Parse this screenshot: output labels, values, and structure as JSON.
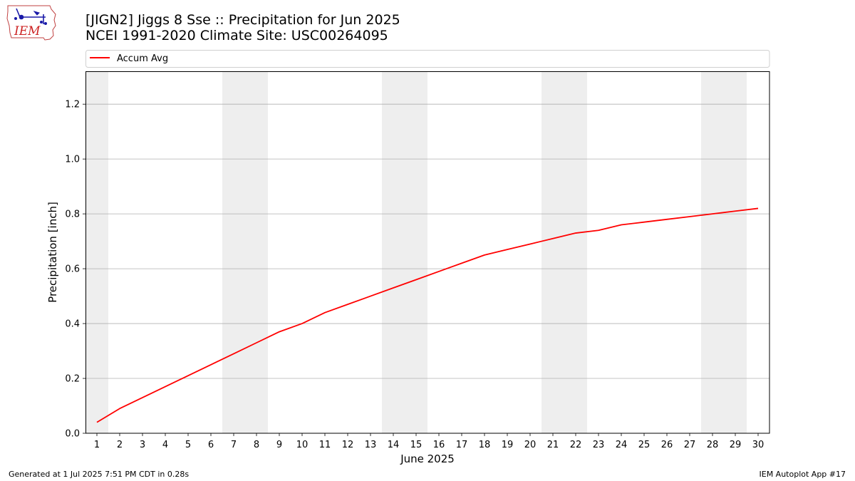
{
  "header": {
    "title_line1": "[JIGN2] Jiggs 8 Sse :: Precipitation for Jun 2025",
    "title_line2": "NCEI 1991-2020 Climate Site: USC00264095",
    "logo_text": "IEM"
  },
  "footer": {
    "left": "Generated at 1 Jul 2025 7:51 PM CDT in 0.28s",
    "right": "IEM Autoplot App #17"
  },
  "colors": {
    "series": "#ff0000",
    "weekend_shade": "#eeeeee",
    "grid": "#b0b0b0",
    "logo_text": "#cc2222",
    "logo_icon": "#1a1aa8"
  },
  "chart_data": {
    "type": "line",
    "xlabel": "June 2025",
    "ylabel": "Precipitation [inch]",
    "xlim": [
      0.5,
      30.5
    ],
    "ylim": [
      0,
      1.32
    ],
    "yticks": [
      0.0,
      0.2,
      0.4,
      0.6,
      0.8,
      1.0,
      1.2
    ],
    "ytick_labels": [
      "0.0",
      "0.2",
      "0.4",
      "0.6",
      "0.8",
      "1.0",
      "1.2"
    ],
    "xticks": [
      1,
      2,
      3,
      4,
      5,
      6,
      7,
      8,
      9,
      10,
      11,
      12,
      13,
      14,
      15,
      16,
      17,
      18,
      19,
      20,
      21,
      22,
      23,
      24,
      25,
      26,
      27,
      28,
      29,
      30
    ],
    "xtick_labels": [
      "1",
      "2",
      "3",
      "4",
      "5",
      "6",
      "7",
      "8",
      "9",
      "10",
      "11",
      "12",
      "13",
      "14",
      "15",
      "16",
      "17",
      "18",
      "19",
      "20",
      "21",
      "22",
      "23",
      "24",
      "25",
      "26",
      "27",
      "28",
      "29",
      "30"
    ],
    "grid": "horizontal",
    "legend": "top",
    "weekend_bands": [
      [
        0.5,
        1.5
      ],
      [
        6.5,
        8.5
      ],
      [
        13.5,
        15.5
      ],
      [
        20.5,
        22.5
      ],
      [
        27.5,
        29.5
      ]
    ],
    "series": [
      {
        "name": "Accum Avg",
        "x": [
          1,
          2,
          3,
          4,
          5,
          6,
          7,
          8,
          9,
          10,
          11,
          12,
          13,
          14,
          15,
          16,
          17,
          18,
          19,
          20,
          21,
          22,
          23,
          24,
          25,
          26,
          27,
          28,
          29,
          30
        ],
        "y": [
          0.04,
          0.09,
          0.13,
          0.17,
          0.21,
          0.25,
          0.29,
          0.33,
          0.37,
          0.4,
          0.44,
          0.47,
          0.5,
          0.53,
          0.56,
          0.59,
          0.62,
          0.65,
          0.67,
          0.69,
          0.71,
          0.73,
          0.74,
          0.76,
          0.77,
          0.78,
          0.79,
          0.8,
          0.81,
          0.82
        ]
      }
    ]
  }
}
